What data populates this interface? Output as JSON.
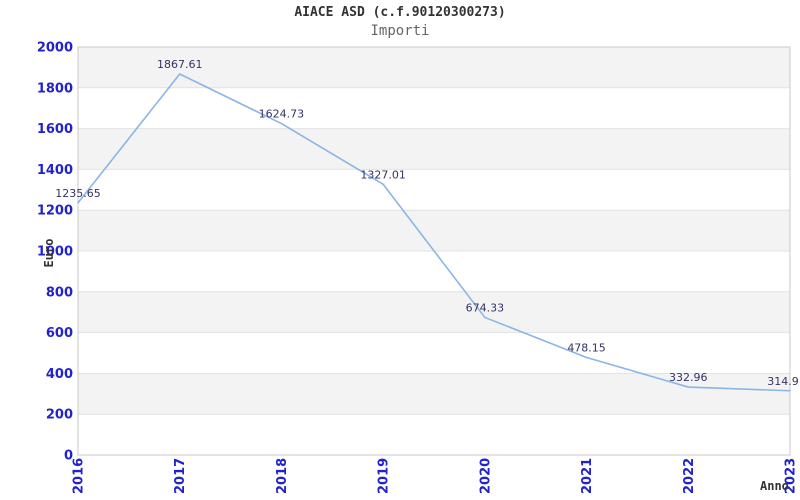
{
  "chart_data": {
    "type": "line",
    "title": "AIACE ASD (c.f.90120300273)",
    "subtitle": "Importi",
    "xlabel": "Anno",
    "ylabel": "Euro",
    "categories": [
      "2016",
      "2017",
      "2018",
      "2019",
      "2020",
      "2021",
      "2022",
      "2023"
    ],
    "series": [
      {
        "name": "Importi",
        "values": [
          1235.65,
          1867.61,
          1624.73,
          1327.01,
          674.33,
          478.15,
          332.96,
          314.9
        ],
        "point_labels": [
          "1235.65",
          "1867.61",
          "1624.73",
          "1327.01",
          "674.33",
          "478.15",
          "332.96",
          "314.9"
        ]
      }
    ],
    "y_ticks": [
      "0",
      "200",
      "400",
      "600",
      "800",
      "1000",
      "1200",
      "1400",
      "1600",
      "1800",
      "2000"
    ],
    "ylim": [
      0,
      2000
    ],
    "ytick_step": 200,
    "grid": "horizontal-bands-alternating",
    "legend": "none",
    "colors": {
      "line": "#8ab5e6",
      "tick_label": "#2222cc",
      "point_label": "#333366",
      "band_gray": "#f3f3f3",
      "band_white": "#ffffff",
      "gridline": "#e2e2e2",
      "plot_border": "#c9c9c9",
      "title": "#333333",
      "subtitle": "#666666",
      "axis_title": "#333333"
    }
  }
}
